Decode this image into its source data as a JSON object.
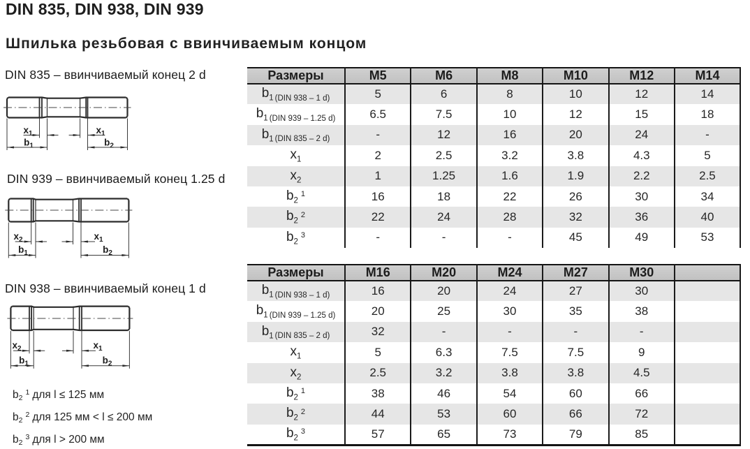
{
  "page": {
    "title": "DIN 835, DIN 938, DIN 939",
    "subtitle": "Шпилька резьбовая с ввинчиваемым концом"
  },
  "drawings": [
    {
      "caption": "DIN 835 – ввинчиваемый конец 2 d",
      "labels": {
        "xl_main": "x",
        "xl_sub": "1",
        "xr_main": "x",
        "xr_sub": "1",
        "bl_main": "b",
        "bl_sub": "1",
        "br_main": "b",
        "br_sub": "2"
      }
    },
    {
      "caption": "DIN 939 – ввинчиваемый конец 1.25 d",
      "labels": {
        "xl_main": "x",
        "xl_sub": "2",
        "xr_main": "x",
        "xr_sub": "1",
        "bl_main": "b",
        "bl_sub": "1",
        "br_main": "b",
        "br_sub": "2"
      }
    },
    {
      "caption": "DIN 938 – ввинчиваемый конец 1 d",
      "labels": {
        "xl_main": "x",
        "xl_sub": "2",
        "xr_main": "x",
        "xr_sub": "1",
        "bl_main": "b",
        "bl_sub": "1",
        "br_main": "b",
        "br_sub": "2"
      }
    }
  ],
  "footnotes": [
    {
      "main": "b",
      "sub": "2",
      "sup": "1",
      "text": "для l ≤ 125 мм"
    },
    {
      "main": "b",
      "sub": "2",
      "sup": "2",
      "text": "для 125 мм < l ≤ 200 мм"
    },
    {
      "main": "b",
      "sub": "2",
      "sup": "3",
      "text": "для l > 200 мм"
    }
  ],
  "tables": [
    {
      "size_header": "Размеры",
      "columns": [
        "M5",
        "M6",
        "M8",
        "M10",
        "M12",
        "M14"
      ],
      "rows": [
        {
          "label": {
            "main": "b",
            "sub": "1",
            "note": "(DIN 938 – 1 d)"
          },
          "values": [
            "5",
            "6",
            "8",
            "10",
            "12",
            "14"
          ]
        },
        {
          "label": {
            "main": "b",
            "sub": "1",
            "note": "(DIN 939 – 1.25 d)"
          },
          "values": [
            "6.5",
            "7.5",
            "10",
            "12",
            "15",
            "18"
          ]
        },
        {
          "label": {
            "main": "b",
            "sub": "1",
            "note": "(DIN 835 – 2 d)"
          },
          "values": [
            "-",
            "12",
            "16",
            "20",
            "24",
            "-"
          ]
        },
        {
          "label": {
            "main": "x",
            "sub": "1"
          },
          "values": [
            "2",
            "2.5",
            "3.2",
            "3.8",
            "4.3",
            "5"
          ]
        },
        {
          "label": {
            "main": "x",
            "sub": "2"
          },
          "values": [
            "1",
            "1.25",
            "1.6",
            "1.9",
            "2.2",
            "2.5"
          ]
        },
        {
          "label": {
            "main": "b",
            "sub": "2",
            "sup": "1"
          },
          "values": [
            "16",
            "18",
            "22",
            "26",
            "30",
            "34"
          ]
        },
        {
          "label": {
            "main": "b",
            "sub": "2",
            "sup": "2"
          },
          "values": [
            "22",
            "24",
            "28",
            "32",
            "36",
            "40"
          ]
        },
        {
          "label": {
            "main": "b",
            "sub": "2",
            "sup": "3"
          },
          "values": [
            "-",
            "-",
            "-",
            "45",
            "49",
            "53"
          ]
        }
      ]
    },
    {
      "size_header": "Размеры",
      "columns": [
        "M16",
        "M20",
        "M24",
        "M27",
        "M30",
        ""
      ],
      "rows": [
        {
          "label": {
            "main": "b",
            "sub": "1",
            "note": "(DIN 938 – 1 d)"
          },
          "values": [
            "16",
            "20",
            "24",
            "27",
            "30",
            ""
          ]
        },
        {
          "label": {
            "main": "b",
            "sub": "1",
            "note": "(DIN 939 – 1.25 d)"
          },
          "values": [
            "20",
            "25",
            "30",
            "35",
            "38",
            ""
          ]
        },
        {
          "label": {
            "main": "b",
            "sub": "1",
            "note": "(DIN 835 – 2 d)"
          },
          "values": [
            "32",
            "-",
            "-",
            "-",
            "-",
            ""
          ]
        },
        {
          "label": {
            "main": "x",
            "sub": "1"
          },
          "values": [
            "5",
            "6.3",
            "7.5",
            "7.5",
            "9",
            ""
          ]
        },
        {
          "label": {
            "main": "x",
            "sub": "2"
          },
          "values": [
            "2.5",
            "3.2",
            "3.8",
            "3.8",
            "4.5",
            ""
          ]
        },
        {
          "label": {
            "main": "b",
            "sub": "2",
            "sup": "1"
          },
          "values": [
            "38",
            "46",
            "54",
            "60",
            "66",
            ""
          ]
        },
        {
          "label": {
            "main": "b",
            "sub": "2",
            "sup": "2"
          },
          "values": [
            "44",
            "53",
            "60",
            "66",
            "72",
            ""
          ]
        },
        {
          "label": {
            "main": "b",
            "sub": "2",
            "sup": "3"
          },
          "values": [
            "57",
            "65",
            "73",
            "79",
            "85",
            ""
          ]
        }
      ]
    }
  ],
  "colors": {
    "header_bg": "#c9c9c9",
    "zebra_bg": "#e6e6e6",
    "border": "#1b1b1b",
    "text": "#262626",
    "line": "#2b2b2b"
  }
}
